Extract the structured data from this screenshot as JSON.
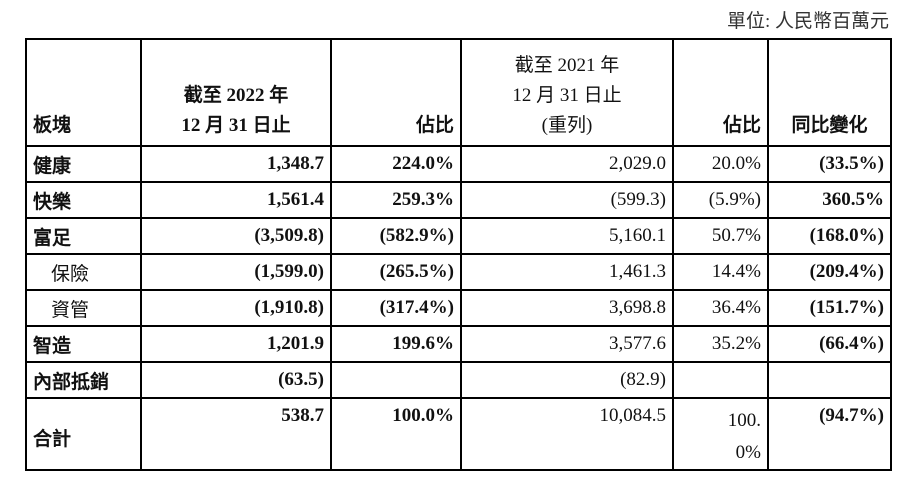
{
  "unit_note": "單位: 人民幣百萬元",
  "table": {
    "header": [
      [
        "板塊"
      ],
      [
        "截至 2022 年",
        "12 月 31 日止"
      ],
      [
        "佔比"
      ],
      [
        "截至 2021 年",
        "12 月 31 日止",
        "(重列)"
      ],
      [
        "佔比"
      ],
      [
        "同比變化"
      ]
    ],
    "rows": [
      [
        "健康",
        "1,348.7",
        "224.0%",
        "2,029.0",
        "20.0%",
        "(33.5%)"
      ],
      [
        "快樂",
        "1,561.4",
        "259.3%",
        "(599.3)",
        "(5.9%)",
        "360.5%"
      ],
      [
        "富足",
        "(3,509.8)",
        "(582.9%)",
        "5,160.1",
        "50.7%",
        "(168.0%)"
      ],
      [
        "保險",
        "(1,599.0)",
        "(265.5%)",
        "1,461.3",
        "14.4%",
        "(209.4%)"
      ],
      [
        "資管",
        "(1,910.8)",
        "(317.4%)",
        "3,698.8",
        "36.4%",
        "(151.7%)"
      ],
      [
        "智造",
        "1,201.9",
        "199.6%",
        "3,577.6",
        "35.2%",
        "(66.4%)"
      ],
      [
        "內部抵銷",
        "(63.5)",
        null,
        "(82.9)",
        null,
        null
      ],
      [
        "合計",
        "538.7",
        "100.0%",
        "10,084.5",
        "100.0%",
        "(94.7%)"
      ]
    ]
  }
}
